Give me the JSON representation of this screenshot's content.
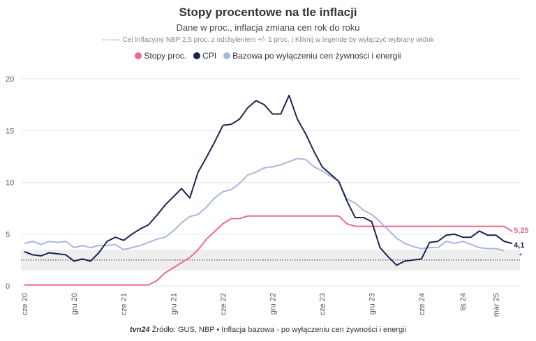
{
  "title": "Stopy procentowe na tle inflacji",
  "subtitle": "Dane w proc., inflacja zmiana cen rok do roku",
  "note": "-------- Cel Inflacyjny NBP 2,5 proc. z odchyleniem +/- 1 proc. | Kliknij w legendę by wyłączyć wybrany widok",
  "footer": {
    "logo": "tvn24",
    "source": "Źródło: GUS, NBP • Inflacja bazowa - po wyłączeniu cen żywności i energii"
  },
  "chart_data": {
    "type": "line",
    "x_start": "2020-06",
    "x_end": "2025-05",
    "x_ticks": [
      "cze 20",
      "gru 20",
      "cze 21",
      "gru 21",
      "cze 22",
      "gru 22",
      "cze 23",
      "gru 23",
      "cze 24",
      "lis 24",
      "mar 25"
    ],
    "x_tick_months": [
      0,
      6,
      12,
      18,
      24,
      30,
      36,
      42,
      48,
      53,
      57
    ],
    "y_ticks": [
      0,
      5,
      10,
      15,
      20
    ],
    "ylim": [
      0,
      20
    ],
    "grid": true,
    "legend_position": "top",
    "target_band": {
      "center": 2.5,
      "low": 1.5,
      "high": 3.5,
      "marker": "*"
    },
    "series": [
      {
        "name": "Stopy proc.",
        "color": "#ef6b8a",
        "end_label": "5,25",
        "values": [
          0.1,
          0.1,
          0.1,
          0.1,
          0.1,
          0.1,
          0.1,
          0.1,
          0.1,
          0.1,
          0.1,
          0.1,
          0.1,
          0.1,
          0.1,
          0.1,
          0.5,
          1.25,
          1.75,
          2.25,
          2.75,
          3.5,
          4.5,
          5.25,
          6.0,
          6.5,
          6.5,
          6.75,
          6.75,
          6.75,
          6.75,
          6.75,
          6.75,
          6.75,
          6.75,
          6.75,
          6.75,
          6.75,
          6.75,
          6.0,
          5.75,
          5.75,
          5.75,
          5.75,
          5.75,
          5.75,
          5.75,
          5.75,
          5.75,
          5.75,
          5.75,
          5.75,
          5.75,
          5.75,
          5.75,
          5.75,
          5.75,
          5.75,
          5.75,
          5.25
        ]
      },
      {
        "name": "CPI",
        "color": "#1a2452",
        "end_label": "4,1",
        "values": [
          3.3,
          3.0,
          2.9,
          3.2,
          3.1,
          3.0,
          2.4,
          2.6,
          2.4,
          3.2,
          4.3,
          4.7,
          4.4,
          5.0,
          5.5,
          5.9,
          6.8,
          7.8,
          8.6,
          9.4,
          8.5,
          11.0,
          12.4,
          13.9,
          15.5,
          15.6,
          16.1,
          17.2,
          17.9,
          17.5,
          16.6,
          16.6,
          18.4,
          16.1,
          14.7,
          13.0,
          11.5,
          10.8,
          10.1,
          8.2,
          6.6,
          6.6,
          6.2,
          3.7,
          2.8,
          2.0,
          2.4,
          2.5,
          2.6,
          4.2,
          4.3,
          4.9,
          5.0,
          4.7,
          4.7,
          5.3,
          4.9,
          4.9,
          4.3,
          4.1
        ]
      },
      {
        "name": "Bazowa po wyłączeniu cen żywności i energii",
        "color": "#a8b6e0",
        "values": [
          4.1,
          4.3,
          4.0,
          4.3,
          4.2,
          4.3,
          3.7,
          3.9,
          3.7,
          3.9,
          3.9,
          4.0,
          3.5,
          3.7,
          3.9,
          4.2,
          4.5,
          4.7,
          5.3,
          6.1,
          6.7,
          6.9,
          7.6,
          8.5,
          9.1,
          9.3,
          9.9,
          10.7,
          11.0,
          11.4,
          11.5,
          11.7,
          12.0,
          12.3,
          12.2,
          11.5,
          11.1,
          10.6,
          10.1,
          8.4,
          8.0,
          7.3,
          6.9,
          6.2,
          5.4,
          4.6,
          4.1,
          3.8,
          3.6,
          3.7,
          3.7,
          4.3,
          4.1,
          4.3,
          4.0,
          3.7,
          3.6,
          3.6,
          3.4,
          null
        ]
      }
    ]
  }
}
